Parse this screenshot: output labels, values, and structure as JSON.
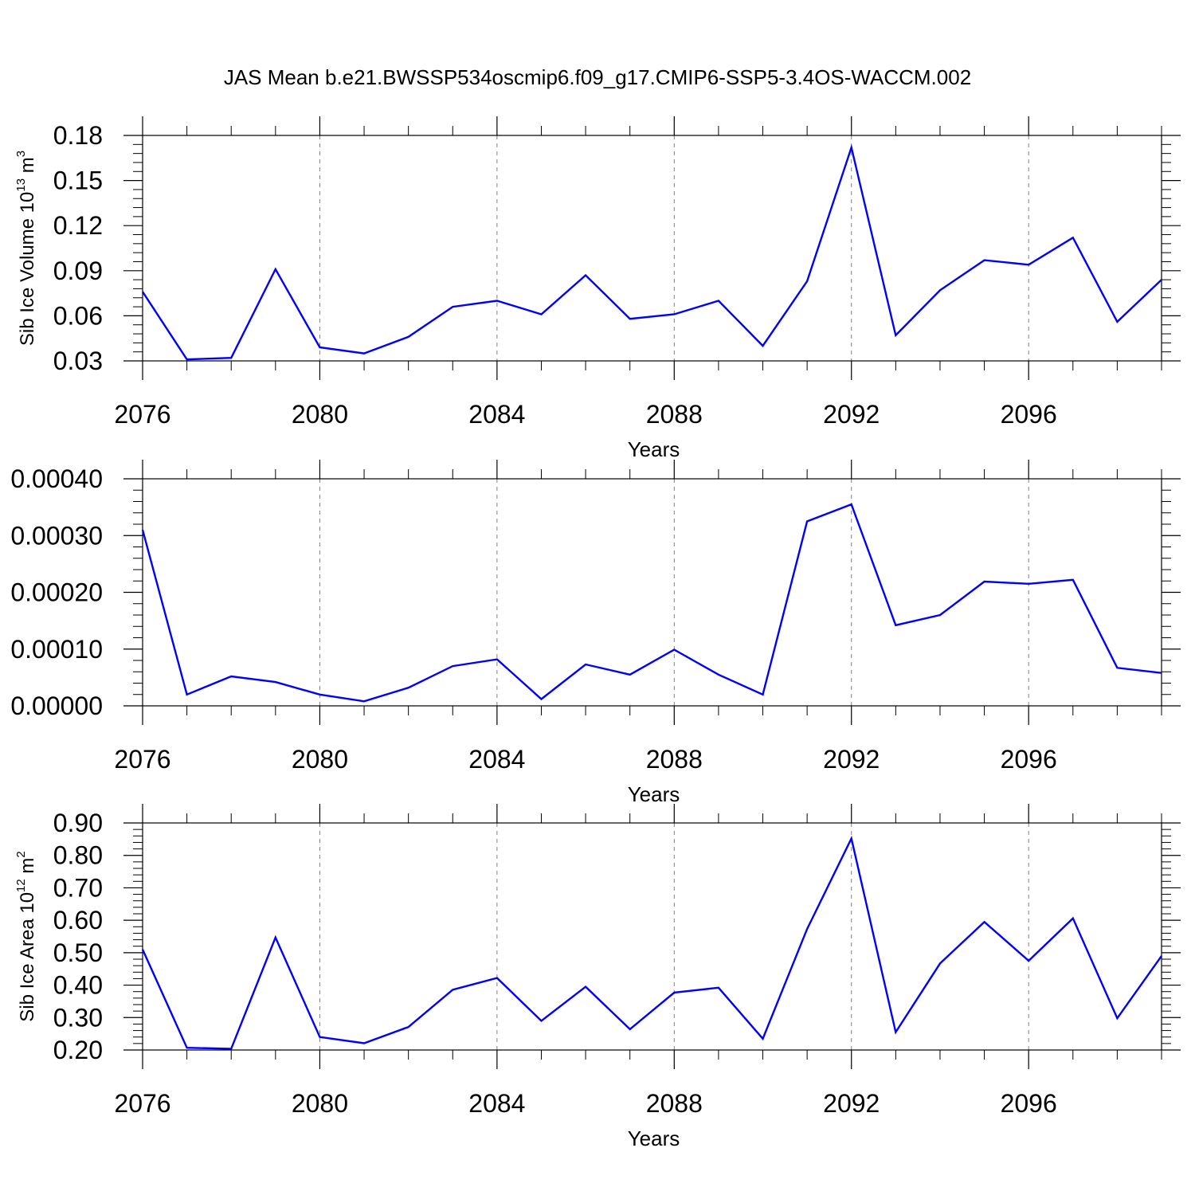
{
  "figure_title": "JAS Mean b.e21.BWSSP534oscmip6.f09_g17.CMIP6-SSP5-3.4OS-WACCM.002",
  "colors": {
    "line": "#0000ff",
    "axis": "#000000",
    "grid": "#808080"
  },
  "chart_data": [
    {
      "type": "line",
      "title": "",
      "xlabel": "Years",
      "ylabel": {
        "text": "Sib Ice Volume 10",
        "sup": "13",
        "unit": " m",
        "unit_sup": "3"
      },
      "x": [
        2076,
        2077,
        2078,
        2079,
        2080,
        2081,
        2082,
        2083,
        2084,
        2085,
        2086,
        2087,
        2088,
        2089,
        2090,
        2091,
        2092,
        2093,
        2094,
        2095,
        2096,
        2097,
        2098,
        2099
      ],
      "values": [
        0.076,
        0.031,
        0.032,
        0.091,
        0.039,
        0.035,
        0.046,
        0.066,
        0.07,
        0.061,
        0.087,
        0.058,
        0.061,
        0.07,
        0.04,
        0.083,
        0.172,
        0.047,
        0.077,
        0.097,
        0.094,
        0.112,
        0.056,
        0.084
      ],
      "xlim": [
        2076,
        2099
      ],
      "ylim": [
        0.03,
        0.18
      ],
      "xticks": [
        2076,
        2080,
        2084,
        2088,
        2092,
        2096
      ],
      "xtick_labels": [
        "2076",
        "2080",
        "2084",
        "2088",
        "2092",
        "2096"
      ],
      "yticks": [
        0.03,
        0.06,
        0.09,
        0.12,
        0.15,
        0.18
      ],
      "ytick_labels": [
        "0.03",
        "0.06",
        "0.09",
        "0.12",
        "0.15",
        "0.18"
      ],
      "grid": "vertical dashed at major x ticks"
    },
    {
      "type": "line",
      "title": "",
      "xlabel": "Years",
      "ylabel": null,
      "x": [
        2076,
        2077,
        2078,
        2079,
        2080,
        2081,
        2082,
        2083,
        2084,
        2085,
        2086,
        2087,
        2088,
        2089,
        2090,
        2091,
        2092,
        2093,
        2094,
        2095,
        2096,
        2097,
        2098,
        2099
      ],
      "values": [
        0.00031,
        2e-05,
        5.2e-05,
        4.2e-05,
        2e-05,
        8e-06,
        3.2e-05,
        7e-05,
        8.2e-05,
        1.2e-05,
        7.3e-05,
        5.5e-05,
        9.9e-05,
        5.5e-05,
        2e-05,
        0.000325,
        0.000355,
        0.000142,
        0.00016,
        0.000219,
        0.000215,
        0.000222,
        6.7e-05,
        5.8e-05
      ],
      "xlim": [
        2076,
        2099
      ],
      "ylim": [
        0,
        0.0004
      ],
      "xticks": [
        2076,
        2080,
        2084,
        2088,
        2092,
        2096
      ],
      "xtick_labels": [
        "2076",
        "2080",
        "2084",
        "2088",
        "2092",
        "2096"
      ],
      "yticks": [
        0,
        0.0001,
        0.0002,
        0.0003,
        0.0004
      ],
      "ytick_labels": [
        "0.00000",
        "0.00010",
        "0.00020",
        "0.00030",
        "0.00040"
      ],
      "grid": "vertical dashed at major x ticks"
    },
    {
      "type": "line",
      "title": "",
      "xlabel": "Years",
      "ylabel": {
        "text": "Sib Ice Area 10",
        "sup": "12",
        "unit": " m",
        "unit_sup": "2"
      },
      "x": [
        2076,
        2077,
        2078,
        2079,
        2080,
        2081,
        2082,
        2083,
        2084,
        2085,
        2086,
        2087,
        2088,
        2089,
        2090,
        2091,
        2092,
        2093,
        2094,
        2095,
        2096,
        2097,
        2098,
        2099
      ],
      "values": [
        0.51,
        0.207,
        0.204,
        0.547,
        0.24,
        0.221,
        0.271,
        0.386,
        0.422,
        0.29,
        0.395,
        0.264,
        0.377,
        0.392,
        0.235,
        0.573,
        0.852,
        0.255,
        0.467,
        0.595,
        0.475,
        0.606,
        0.298,
        0.49
      ],
      "xlim": [
        2076,
        2099
      ],
      "ylim": [
        0.2,
        0.9
      ],
      "xticks": [
        2076,
        2080,
        2084,
        2088,
        2092,
        2096
      ],
      "xtick_labels": [
        "2076",
        "2080",
        "2084",
        "2088",
        "2092",
        "2096"
      ],
      "yticks": [
        0.2,
        0.3,
        0.4,
        0.5,
        0.6,
        0.7,
        0.8,
        0.9
      ],
      "ytick_labels": [
        "0.20",
        "0.30",
        "0.40",
        "0.50",
        "0.60",
        "0.70",
        "0.80",
        "0.90"
      ],
      "grid": "vertical dashed at major x ticks"
    }
  ]
}
